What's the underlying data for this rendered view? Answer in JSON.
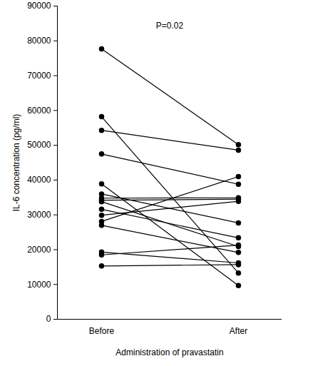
{
  "chart_data": {
    "type": "paired",
    "annotation": "P=0.02",
    "x_label": "Administration of pravastatin",
    "y_label": "IL-6 concentration (pg/ml)",
    "categories": [
      "Before",
      "After"
    ],
    "values": [
      [
        77700,
        50200
      ],
      [
        58200,
        13300
      ],
      [
        54300,
        48600
      ],
      [
        47500,
        38800
      ],
      [
        38900,
        9700
      ],
      [
        36000,
        27700
      ],
      [
        34800,
        34900
      ],
      [
        34200,
        34500
      ],
      [
        33800,
        20900
      ],
      [
        31600,
        23400
      ],
      [
        29900,
        33900
      ],
      [
        28100,
        41000
      ],
      [
        27000,
        19200
      ],
      [
        19300,
        16200
      ],
      [
        18500,
        21300
      ],
      [
        15300,
        15700
      ]
    ],
    "color": "#000000",
    "marker": "circle",
    "ylim": [
      0,
      90000
    ],
    "yticks": [
      0,
      10000,
      20000,
      30000,
      40000,
      50000,
      60000,
      70000,
      80000,
      90000
    ],
    "grid": false
  }
}
